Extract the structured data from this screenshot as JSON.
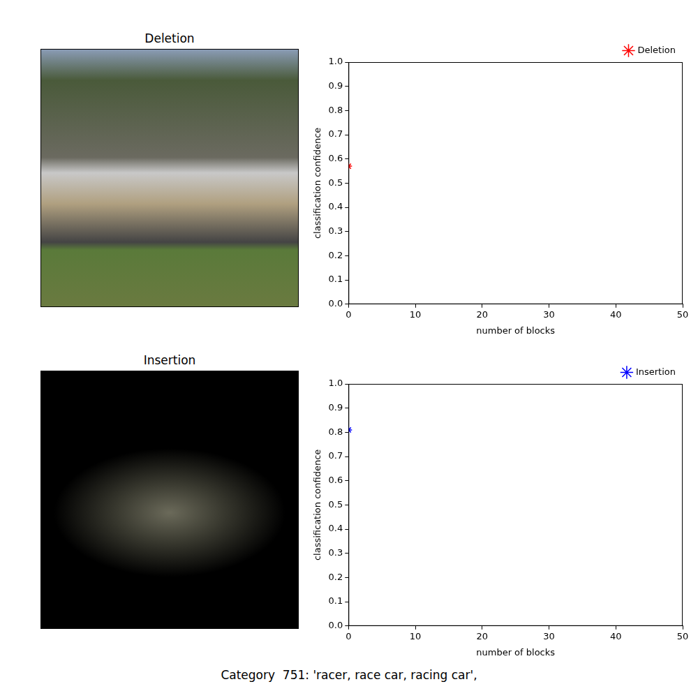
{
  "chart_data": [
    {
      "type": "line",
      "x_label": "number of blocks",
      "y_label": "classification confidence",
      "xlim": [
        0,
        50
      ],
      "xticks": [
        0,
        10,
        20,
        30,
        40,
        50
      ],
      "ylim": [
        0,
        1
      ],
      "yticks": [
        {
          "value": 0,
          "label": "0.0"
        },
        0.1,
        0.2,
        0.3,
        0.4,
        0.5,
        0.6,
        0.7,
        0.8,
        0.9,
        {
          "value": 1,
          "label": "1.0"
        }
      ],
      "grid": false,
      "legend": "upper right",
      "series": [
        {
          "name": "Deletion",
          "color": "#ff0000",
          "marker": "star",
          "line_style": "solid",
          "x": [
            0
          ],
          "values": [
            0.57
          ]
        }
      ]
    },
    {
      "type": "line",
      "x_label": "number of blocks",
      "y_label": "classification confidence",
      "xlim": [
        0,
        50
      ],
      "xticks": [
        0,
        10,
        20,
        30,
        40,
        50
      ],
      "ylim": [
        0,
        1
      ],
      "yticks": [
        {
          "value": 0,
          "label": "0.0"
        },
        0.1,
        0.2,
        0.3,
        0.4,
        0.5,
        0.6,
        0.7,
        0.8,
        0.9,
        {
          "value": 1,
          "label": "1.0"
        }
      ],
      "grid": false,
      "legend": "upper right",
      "series": [
        {
          "name": "Insertion",
          "color": "#0000ff",
          "marker": "star",
          "line_style": "solid",
          "x": [
            0
          ],
          "values": [
            0.81
          ]
        }
      ]
    }
  ],
  "images": [
    {
      "title": "Deletion"
    },
    {
      "title": "Insertion"
    }
  ],
  "caption": "Category  751: 'racer, race car, racing car',"
}
